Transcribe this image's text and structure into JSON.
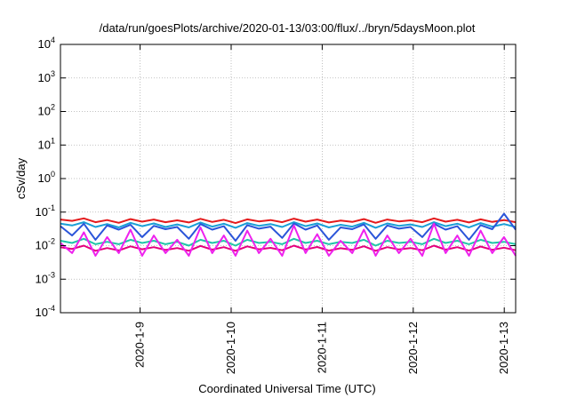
{
  "chart_data": {
    "type": "line",
    "title": "/data/run/goesPlots/archive/2020-01-13/03:00/flux/../bryn/5daysMoon.plot",
    "xlabel": "Coordinated Universal Time (UTC)",
    "ylabel": "cSv/day",
    "yscale": "log",
    "ylim": [
      0.0001,
      10000
    ],
    "xlim": [
      "2020-01-08 03:00",
      "2020-01-13 03:00"
    ],
    "grid": true,
    "y_ticks": [
      {
        "value": 0.0001,
        "base": "10",
        "exp": "-4"
      },
      {
        "value": 0.001,
        "base": "10",
        "exp": "-3"
      },
      {
        "value": 0.01,
        "base": "10",
        "exp": "-2"
      },
      {
        "value": 0.1,
        "base": "10",
        "exp": "-1"
      },
      {
        "value": 1,
        "base": "10",
        "exp": "0"
      },
      {
        "value": 10,
        "base": "10",
        "exp": "1"
      },
      {
        "value": 100,
        "base": "10",
        "exp": "2"
      },
      {
        "value": 1000,
        "base": "10",
        "exp": "3"
      },
      {
        "value": 10000,
        "base": "10",
        "exp": "4"
      }
    ],
    "x_ticks": [
      "2020-1-9",
      "2020-1-10",
      "2020-1-11",
      "2020-1-12",
      "2020-1-13"
    ],
    "series": [
      {
        "color": "#e41a1c",
        "values": [
          0.06,
          0.055,
          0.065,
          0.05,
          0.058,
          0.048,
          0.062,
          0.052,
          0.06,
          0.05,
          0.057,
          0.049,
          0.063,
          0.051,
          0.059,
          0.047,
          0.061,
          0.053,
          0.058,
          0.05,
          0.064,
          0.052,
          0.06,
          0.049,
          0.056,
          0.051,
          0.062,
          0.048,
          0.06,
          0.053,
          0.057,
          0.05,
          0.065,
          0.052,
          0.059,
          0.049,
          0.061,
          0.051,
          0.058,
          0.05
        ]
      },
      {
        "color": "#1a9fd6",
        "values": [
          0.045,
          0.04,
          0.05,
          0.036,
          0.044,
          0.035,
          0.048,
          0.038,
          0.046,
          0.036,
          0.043,
          0.035,
          0.049,
          0.037,
          0.045,
          0.034,
          0.047,
          0.039,
          0.044,
          0.036,
          0.05,
          0.038,
          0.046,
          0.035,
          0.042,
          0.037,
          0.048,
          0.034,
          0.046,
          0.039,
          0.043,
          0.036,
          0.05,
          0.038,
          0.045,
          0.035,
          0.047,
          0.037,
          0.044,
          0.036
        ]
      },
      {
        "color": "#2b55d9",
        "values": [
          0.038,
          0.02,
          0.045,
          0.015,
          0.04,
          0.03,
          0.042,
          0.018,
          0.039,
          0.031,
          0.036,
          0.016,
          0.044,
          0.03,
          0.038,
          0.014,
          0.041,
          0.032,
          0.037,
          0.017,
          0.046,
          0.03,
          0.04,
          0.015,
          0.035,
          0.031,
          0.043,
          0.016,
          0.04,
          0.032,
          0.036,
          0.018,
          0.045,
          0.03,
          0.038,
          0.015,
          0.041,
          0.031,
          0.09,
          0.03
        ]
      },
      {
        "color": "#20c5a8",
        "values": [
          0.014,
          0.012,
          0.016,
          0.011,
          0.013,
          0.011,
          0.015,
          0.012,
          0.014,
          0.011,
          0.013,
          0.01,
          0.015,
          0.012,
          0.014,
          0.01,
          0.015,
          0.012,
          0.013,
          0.011,
          0.016,
          0.012,
          0.014,
          0.011,
          0.013,
          0.012,
          0.015,
          0.01,
          0.014,
          0.012,
          0.013,
          0.011,
          0.016,
          0.012,
          0.014,
          0.011,
          0.015,
          0.012,
          0.013,
          0.011
        ]
      },
      {
        "color": "#e4007c",
        "values": [
          0.009,
          0.008,
          0.01,
          0.007,
          0.0085,
          0.0072,
          0.0095,
          0.0078,
          0.009,
          0.0074,
          0.0085,
          0.007,
          0.0098,
          0.0076,
          0.009,
          0.007,
          0.0095,
          0.0078,
          0.0086,
          0.0073,
          0.01,
          0.0077,
          0.0091,
          0.0071,
          0.0084,
          0.0075,
          0.0096,
          0.007,
          0.009,
          0.0077,
          0.0085,
          0.0073,
          0.01,
          0.0076,
          0.009,
          0.0071,
          0.0094,
          0.0075,
          0.0087,
          0.0073
        ]
      },
      {
        "color": "#ee22ee",
        "values": [
          0.012,
          0.006,
          0.025,
          0.005,
          0.018,
          0.006,
          0.03,
          0.005,
          0.02,
          0.006,
          0.015,
          0.005,
          0.035,
          0.006,
          0.02,
          0.005,
          0.028,
          0.006,
          0.016,
          0.005,
          0.04,
          0.006,
          0.022,
          0.005,
          0.014,
          0.006,
          0.03,
          0.005,
          0.02,
          0.006,
          0.016,
          0.005,
          0.045,
          0.006,
          0.02,
          0.005,
          0.028,
          0.006,
          0.018,
          0.005
        ]
      }
    ]
  }
}
